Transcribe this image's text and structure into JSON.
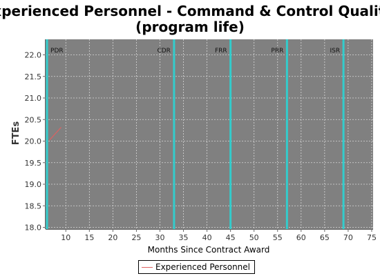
{
  "chart_data": {
    "type": "line",
    "title": [
      "Experienced Personnel - Command & Control Quality",
      "(program life)"
    ],
    "xlabel": "Months Since Contract Award",
    "ylabel": "FTEs",
    "xlim": [
      5.7,
      75.3
    ],
    "ylim": [
      17.96,
      22.36
    ],
    "x_ticks": [
      10,
      15,
      20,
      25,
      30,
      35,
      40,
      45,
      50,
      55,
      60,
      65,
      70,
      75
    ],
    "y_ticks": [
      "18.0",
      "18.5",
      "19.0",
      "19.5",
      "20.0",
      "20.5",
      "21.0",
      "21.5",
      "22.0"
    ],
    "grid": true,
    "background": "#808080",
    "series": [
      {
        "name": "Experienced Personnel",
        "color": "#e06060",
        "x": [
          6.5,
          9
        ],
        "y": [
          20.02,
          20.32
        ]
      }
    ],
    "milestones": [
      {
        "label": "PDR",
        "x": 6.0
      },
      {
        "label": "CDR",
        "x": 33
      },
      {
        "label": "FRR",
        "x": 45
      },
      {
        "label": "PRR",
        "x": 57
      },
      {
        "label": "ISR",
        "x": 69
      }
    ],
    "milestone_color": "#33cccc",
    "legend_position": "bottom-center"
  }
}
